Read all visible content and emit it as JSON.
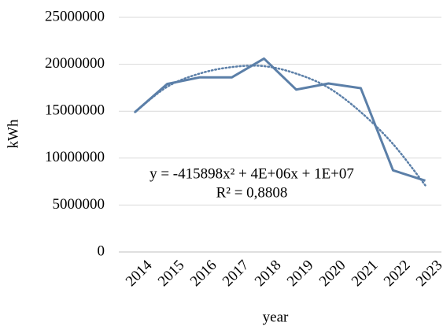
{
  "chart_data": {
    "type": "line",
    "x_label": "year",
    "y_label": "kWh",
    "categories": [
      "2014",
      "2015",
      "2016",
      "2017",
      "2018",
      "2019",
      "2020",
      "2021",
      "2022",
      "2023"
    ],
    "series": [
      {
        "color": "#5b7fa8",
        "values": [
          14900000,
          17900000,
          18600000,
          18600000,
          20600000,
          17300000,
          17950000,
          17450000,
          8700000,
          7600000
        ]
      }
    ],
    "trendline": {
      "type": "polynomial",
      "color": "#5b7fa8",
      "equation": "y = -415898x² + 4E+06x + 1E+07",
      "r_squared": "R² = 0,8808",
      "values": [
        14900000,
        17600000,
        19000000,
        19700000,
        19800000,
        19000000,
        17500000,
        14900000,
        11500000,
        7100000
      ]
    },
    "ylim": [
      0,
      25000000
    ],
    "yticks": [
      0,
      5000000,
      10000000,
      15000000,
      20000000,
      25000000
    ],
    "grid": true
  }
}
